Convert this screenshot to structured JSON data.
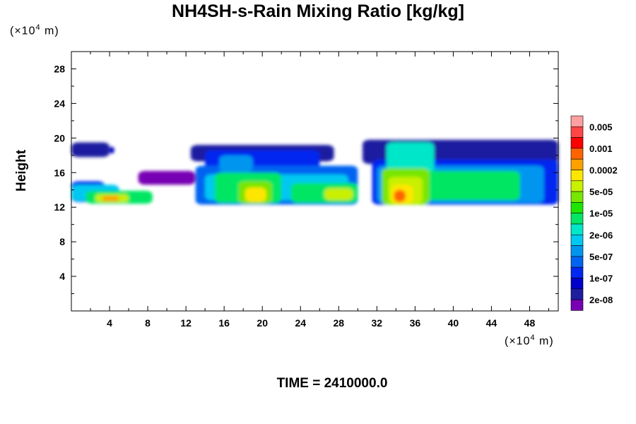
{
  "chart_data": {
    "type": "heatmap",
    "title": "NH4SH-s-Rain Mixing Ratio [kg/kg]",
    "ylabel": "Height",
    "x_unit": {
      "prefix": "(×10",
      "exp": "4",
      "suffix": " m)"
    },
    "y_unit": {
      "prefix": "(×10",
      "exp": "4",
      "suffix": " m)"
    },
    "xlim": [
      0,
      51
    ],
    "ylim": [
      0,
      30
    ],
    "x_ticks": [
      4,
      8,
      12,
      16,
      20,
      24,
      28,
      32,
      36,
      40,
      44,
      48
    ],
    "y_ticks": [
      4,
      8,
      12,
      16,
      20,
      24,
      28
    ],
    "colorbar": {
      "labels": [
        "0.005",
        "0.001",
        "0.0002",
        "5e-05",
        "1e-05",
        "2e-06",
        "5e-07",
        "1e-07",
        "2e-08"
      ],
      "colors_top_to_bottom": [
        "#ff9f9f",
        "#ff4646",
        "#ff0000",
        "#ff6400",
        "#ffa000",
        "#ffe600",
        "#c8f000",
        "#78e600",
        "#1ee600",
        "#00e664",
        "#00e6c8",
        "#00c8f0",
        "#0096f0",
        "#0064f0",
        "#0028f0",
        "#0000c8",
        "#1e1ea0",
        "#7800b4"
      ]
    },
    "regions": [
      {
        "x0": 0.0,
        "x1": 4.0,
        "y0": 17.8,
        "y1": 19.5,
        "level": 1
      },
      {
        "x0": 4.0,
        "x1": 4.5,
        "y0": 18.2,
        "y1": 19.0,
        "level": 2
      },
      {
        "x0": 0.0,
        "x1": 3.5,
        "y0": 12.6,
        "y1": 15.0,
        "level": 3
      },
      {
        "x0": 0.0,
        "x1": 5.0,
        "y0": 12.7,
        "y1": 14.6,
        "level": 6
      },
      {
        "x0": 1.5,
        "x1": 8.5,
        "y0": 12.4,
        "y1": 13.9,
        "level": 8
      },
      {
        "x0": 2.5,
        "x1": 6.0,
        "y0": 12.6,
        "y1": 13.5,
        "level": 11
      },
      {
        "x0": 3.2,
        "x1": 5.0,
        "y0": 12.7,
        "y1": 13.3,
        "level": 13
      },
      {
        "x0": 7.0,
        "x1": 13.0,
        "y0": 14.6,
        "y1": 16.2,
        "level": 0
      },
      {
        "x0": 12.5,
        "x1": 27.5,
        "y0": 17.3,
        "y1": 19.2,
        "level": 1
      },
      {
        "x0": 14.0,
        "x1": 26.0,
        "y0": 15.8,
        "y1": 18.6,
        "level": 3
      },
      {
        "x0": 15.5,
        "x1": 19.0,
        "y0": 16.0,
        "y1": 18.0,
        "level": 5
      },
      {
        "x0": 13.0,
        "x1": 30.0,
        "y0": 12.3,
        "y1": 16.8,
        "level": 4
      },
      {
        "x0": 14.0,
        "x1": 29.0,
        "y0": 12.8,
        "y1": 15.8,
        "level": 6
      },
      {
        "x0": 15.0,
        "x1": 22.0,
        "y0": 12.5,
        "y1": 16.0,
        "level": 8
      },
      {
        "x0": 23.0,
        "x1": 30.0,
        "y0": 12.5,
        "y1": 14.8,
        "level": 8
      },
      {
        "x0": 17.5,
        "x1": 21.0,
        "y0": 12.4,
        "y1": 15.0,
        "level": 10
      },
      {
        "x0": 18.2,
        "x1": 20.4,
        "y0": 12.6,
        "y1": 14.3,
        "level": 12
      },
      {
        "x0": 26.5,
        "x1": 29.5,
        "y0": 12.8,
        "y1": 14.2,
        "level": 11
      },
      {
        "x0": 30.5,
        "x1": 51.0,
        "y0": 17.0,
        "y1": 19.8,
        "level": 1
      },
      {
        "x0": 31.5,
        "x1": 51.0,
        "y0": 12.3,
        "y1": 17.5,
        "level": 3
      },
      {
        "x0": 32.0,
        "x1": 49.5,
        "y0": 12.5,
        "y1": 16.8,
        "level": 5
      },
      {
        "x0": 32.5,
        "x1": 47.0,
        "y0": 12.8,
        "y1": 16.2,
        "level": 8
      },
      {
        "x0": 33.0,
        "x1": 38.0,
        "y0": 14.0,
        "y1": 19.5,
        "level": 7
      },
      {
        "x0": 32.5,
        "x1": 37.5,
        "y0": 12.3,
        "y1": 16.5,
        "level": 10
      },
      {
        "x0": 33.2,
        "x1": 36.8,
        "y0": 12.4,
        "y1": 15.5,
        "level": 11
      },
      {
        "x0": 33.5,
        "x1": 35.8,
        "y0": 12.4,
        "y1": 14.6,
        "level": 12
      },
      {
        "x0": 33.8,
        "x1": 35.0,
        "y0": 12.6,
        "y1": 14.0,
        "level": 14
      }
    ]
  },
  "time_label": "TIME = 2410000.0"
}
